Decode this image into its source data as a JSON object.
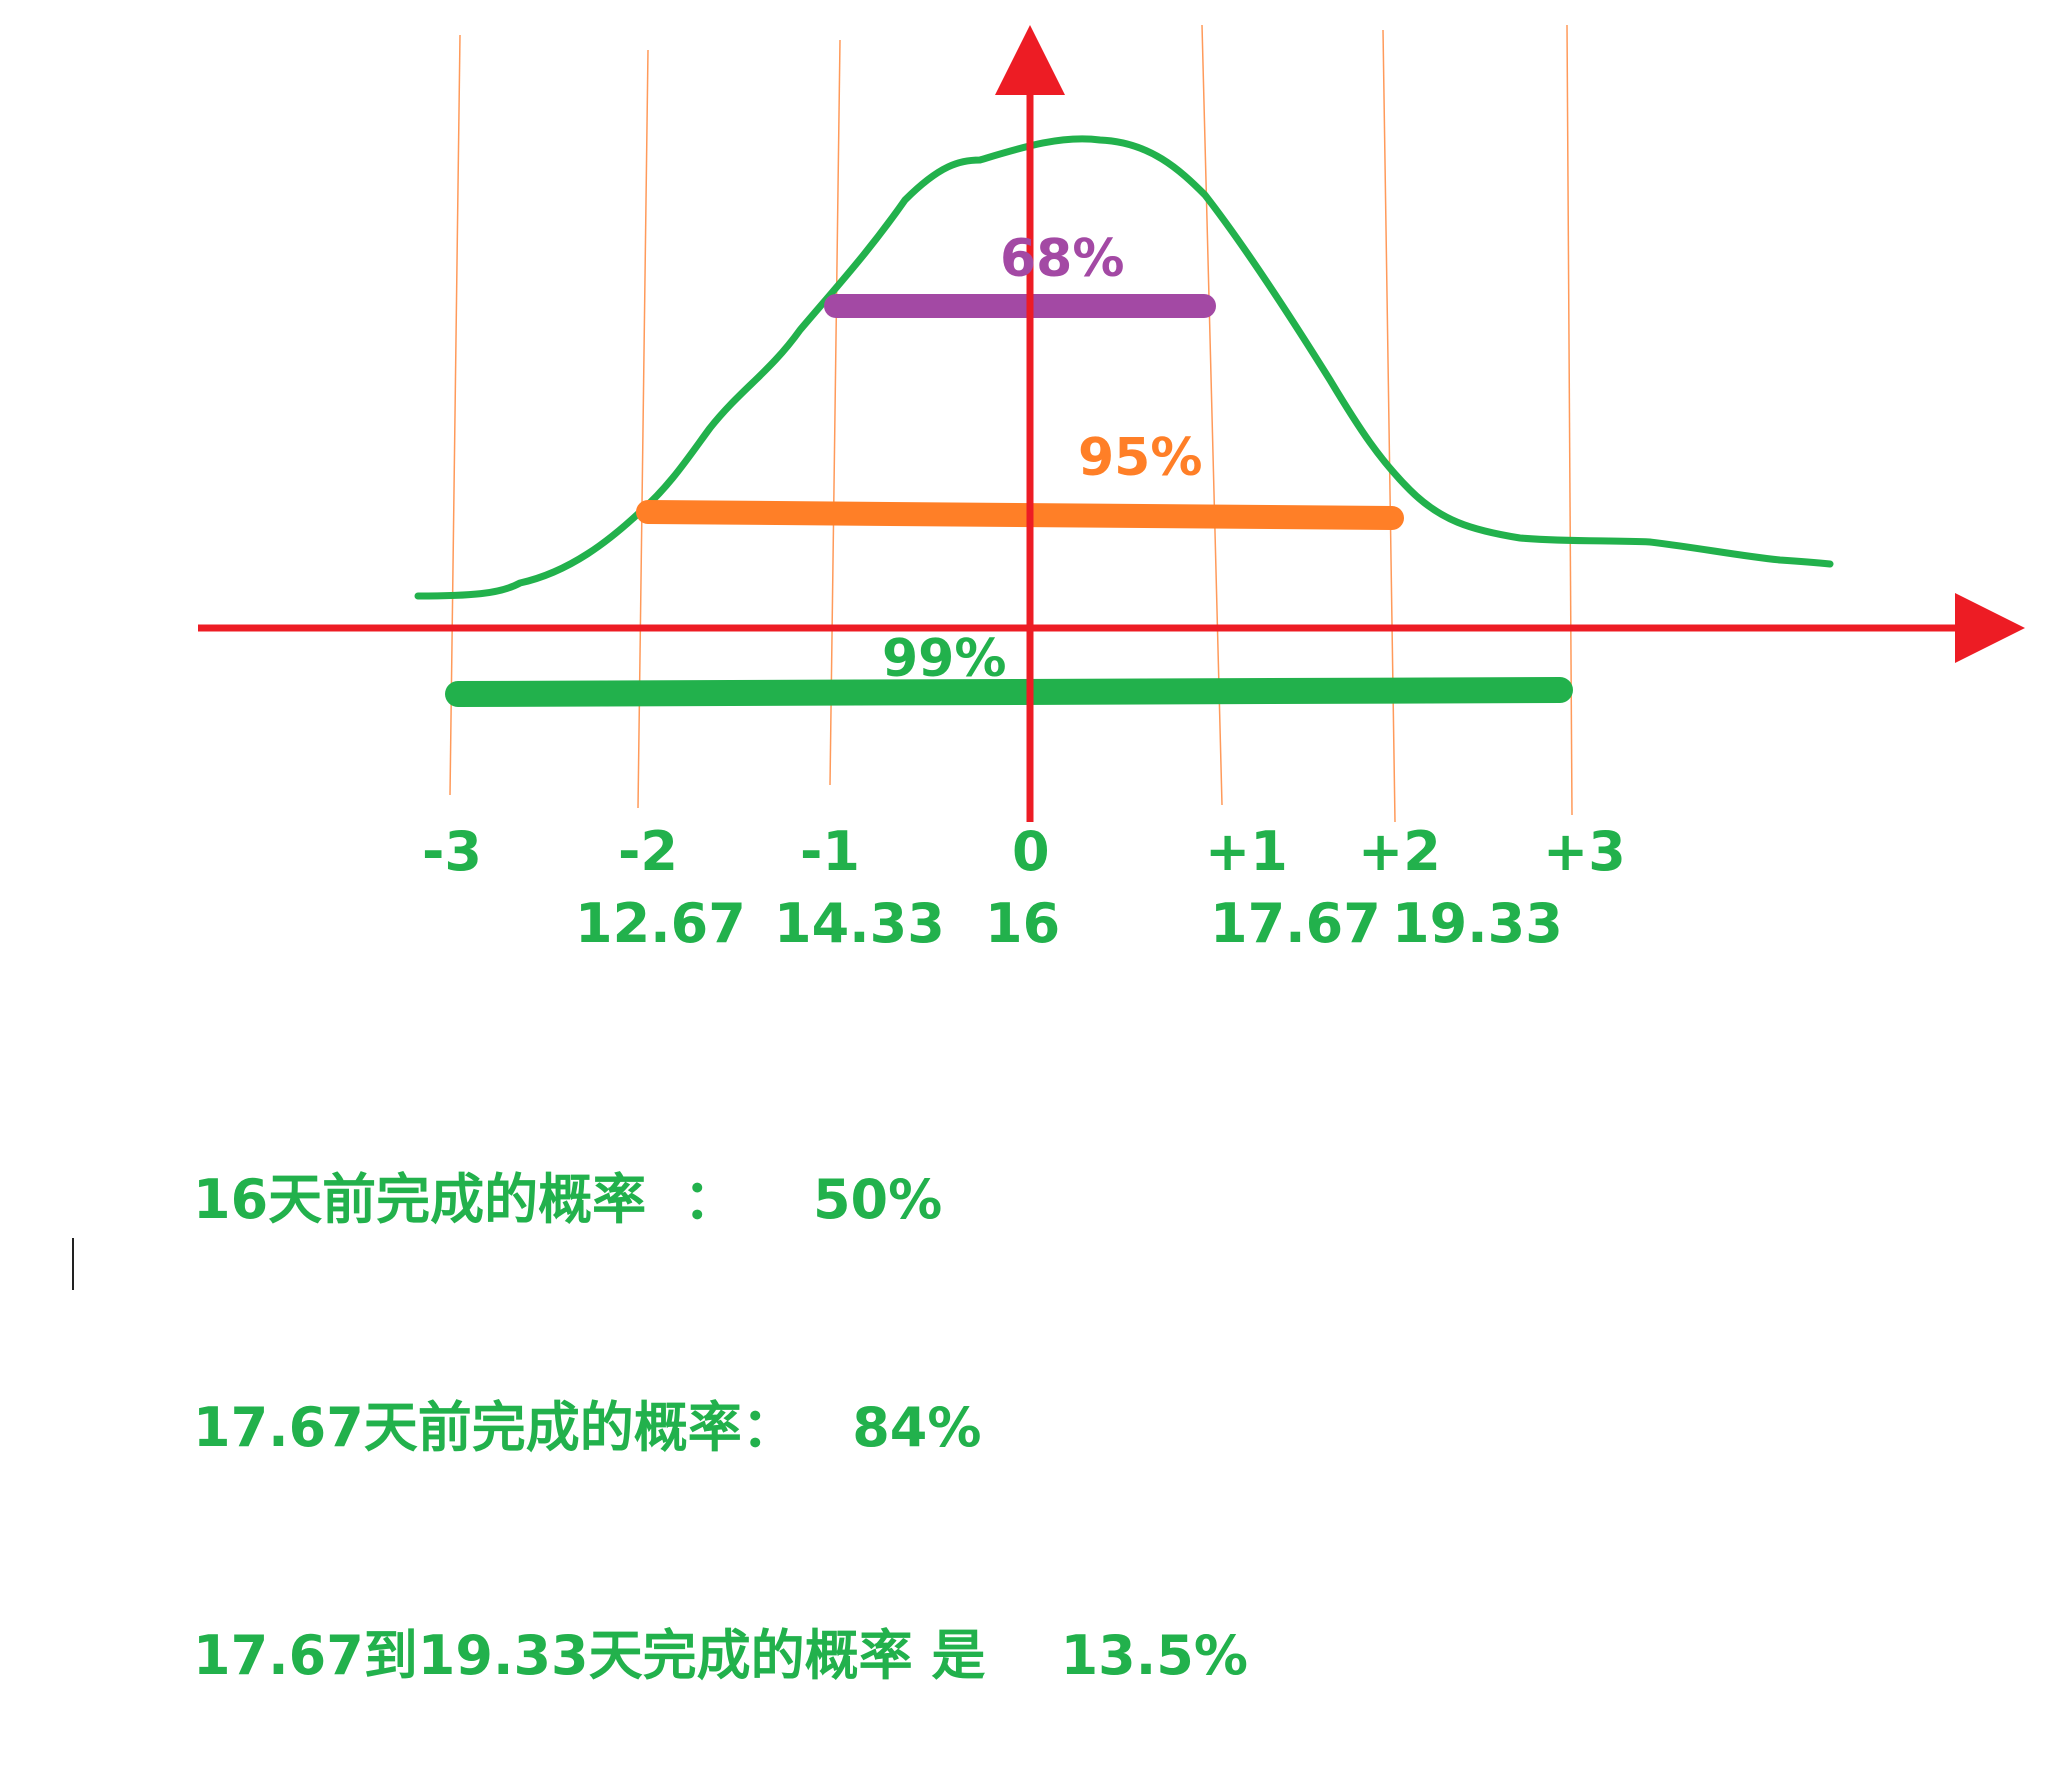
{
  "colors": {
    "axis": "#ed1c24",
    "curve": "#22b14c",
    "band_68": "#a349a4",
    "band_95": "#ff7f27",
    "band_99": "#22b14c",
    "guide": "#ff9a5a",
    "label_green": "#22b14c"
  },
  "bands": [
    {
      "label": "68%",
      "from_sigma": -1,
      "to_sigma": 1
    },
    {
      "label": "95%",
      "from_sigma": -2,
      "to_sigma": 2
    },
    {
      "label": "99%",
      "from_sigma": -3,
      "to_sigma": 3
    }
  ],
  "sigma_labels": [
    "-3",
    "-2",
    "-1",
    "0",
    "+1",
    "+2",
    "+3"
  ],
  "value_labels": [
    "12.67",
    "14.33",
    "16",
    "17.67",
    "19.33"
  ],
  "notes": [
    "16天前完成的概率  ：    50%",
    "17.67天前完成的概率：   84%",
    "17.67到19.33天完成的概率 是    13.5%"
  ]
}
